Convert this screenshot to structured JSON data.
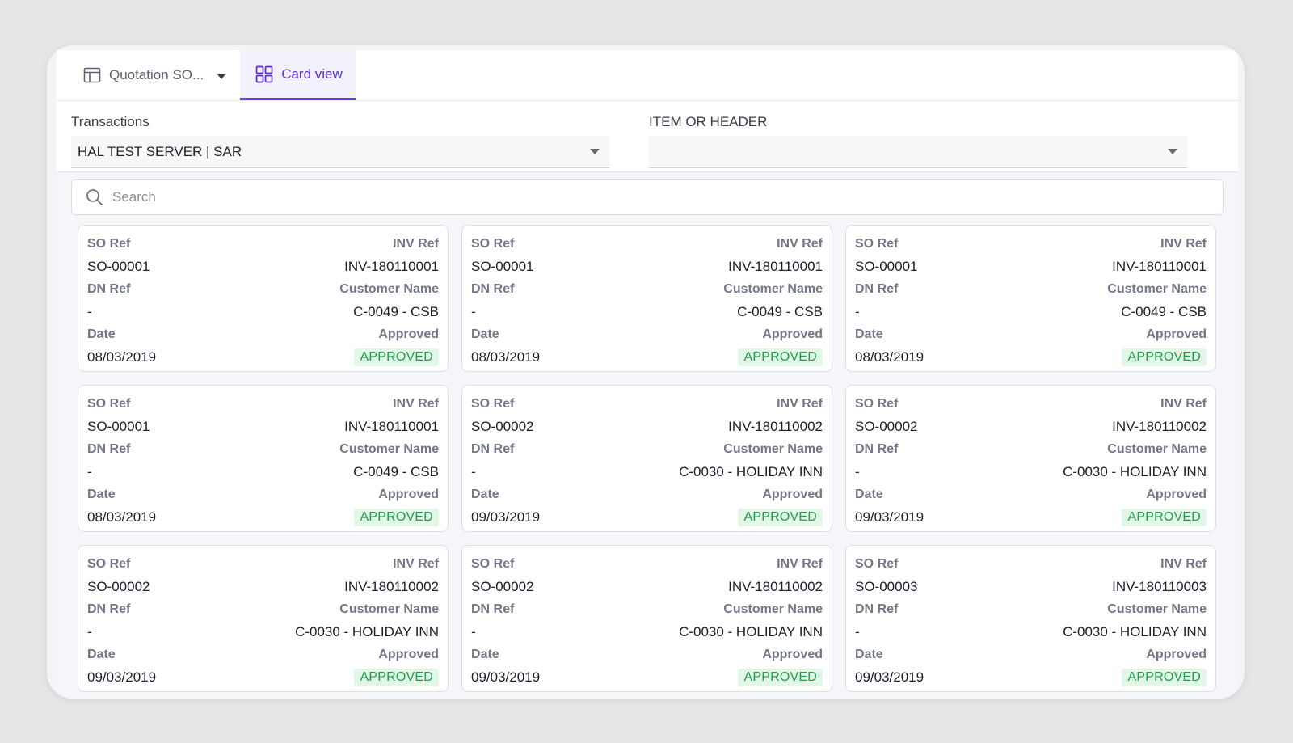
{
  "tabs": [
    {
      "label": "Quotation SO...",
      "icon": "table-icon",
      "active": false
    },
    {
      "label": "Card view",
      "icon": "grid-icon",
      "active": true
    }
  ],
  "filters": {
    "transactions": {
      "label": "Transactions",
      "value": "HAL TEST SERVER | SAR"
    },
    "item_or_header": {
      "label": "ITEM OR HEADER",
      "value": ""
    }
  },
  "search": {
    "placeholder": "Search",
    "value": ""
  },
  "field_labels": {
    "so_ref": "SO Ref",
    "inv_ref": "INV Ref",
    "dn_ref": "DN Ref",
    "customer_name": "Customer Name",
    "date": "Date",
    "approved": "Approved"
  },
  "colors": {
    "accent": "#6a3de8",
    "approved_bg": "#e3f7e9",
    "approved_text": "#1e9d4a"
  },
  "cards": [
    {
      "so_ref": "SO-00001",
      "inv_ref": "INV-180110001",
      "dn_ref": "-",
      "customer": "C-0049 - CSB",
      "date": "08/03/2019",
      "status": "APPROVED"
    },
    {
      "so_ref": "SO-00001",
      "inv_ref": "INV-180110001",
      "dn_ref": "-",
      "customer": "C-0049 - CSB",
      "date": "08/03/2019",
      "status": "APPROVED"
    },
    {
      "so_ref": "SO-00001",
      "inv_ref": "INV-180110001",
      "dn_ref": "-",
      "customer": "C-0049 - CSB",
      "date": "08/03/2019",
      "status": "APPROVED"
    },
    {
      "so_ref": "SO-00001",
      "inv_ref": "INV-180110001",
      "dn_ref": "-",
      "customer": "C-0049 - CSB",
      "date": "08/03/2019",
      "status": "APPROVED"
    },
    {
      "so_ref": "SO-00002",
      "inv_ref": "INV-180110002",
      "dn_ref": "-",
      "customer": "C-0030 - HOLIDAY INN",
      "date": "09/03/2019",
      "status": "APPROVED"
    },
    {
      "so_ref": "SO-00002",
      "inv_ref": "INV-180110002",
      "dn_ref": "-",
      "customer": "C-0030 - HOLIDAY INN",
      "date": "09/03/2019",
      "status": "APPROVED"
    },
    {
      "so_ref": "SO-00002",
      "inv_ref": "INV-180110002",
      "dn_ref": "-",
      "customer": "C-0030 - HOLIDAY INN",
      "date": "09/03/2019",
      "status": "APPROVED"
    },
    {
      "so_ref": "SO-00002",
      "inv_ref": "INV-180110002",
      "dn_ref": "-",
      "customer": "C-0030 - HOLIDAY INN",
      "date": "09/03/2019",
      "status": "APPROVED"
    },
    {
      "so_ref": "SO-00003",
      "inv_ref": "INV-180110003",
      "dn_ref": "-",
      "customer": "C-0030 - HOLIDAY INN",
      "date": "09/03/2019",
      "status": "APPROVED"
    }
  ]
}
